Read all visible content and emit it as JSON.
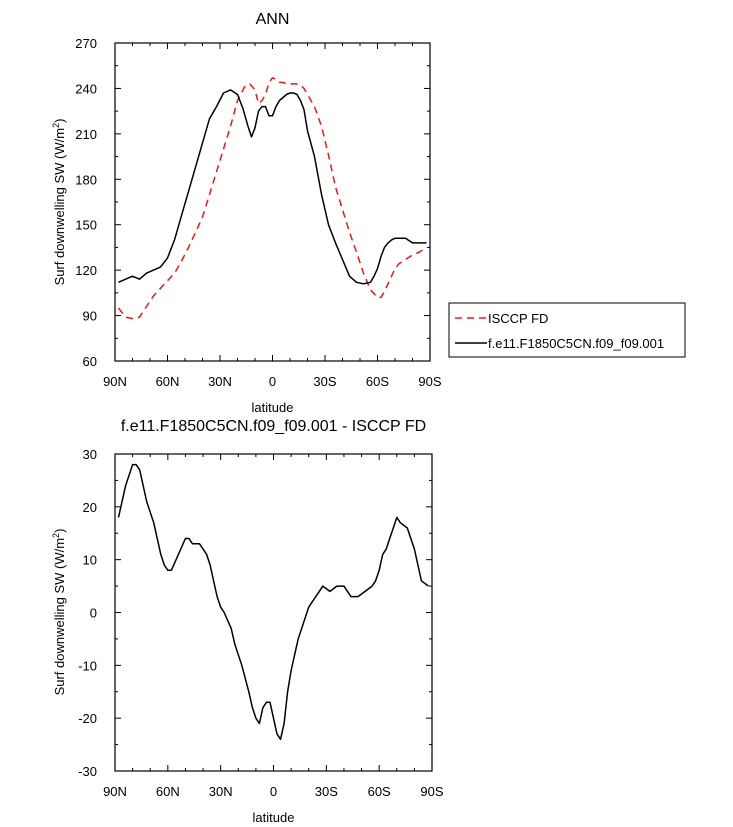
{
  "chart_data": [
    {
      "type": "line",
      "title": "ANN",
      "xlabel": "latitude",
      "ylabel": "Surf downwelling SW (W/m²)",
      "xlim": [
        -90,
        90
      ],
      "ylim": [
        60,
        270
      ],
      "xticks": [
        {
          "v": -90,
          "label": "90N"
        },
        {
          "v": -60,
          "label": "60N"
        },
        {
          "v": -30,
          "label": "30N"
        },
        {
          "v": 0,
          "label": "0"
        },
        {
          "v": 30,
          "label": "30S"
        },
        {
          "v": 60,
          "label": "60S"
        },
        {
          "v": 90,
          "label": "90S"
        }
      ],
      "yticks": [
        {
          "v": 60,
          "label": "60"
        },
        {
          "v": 90,
          "label": "90"
        },
        {
          "v": 120,
          "label": "120"
        },
        {
          "v": 150,
          "label": "150"
        },
        {
          "v": 180,
          "label": "180"
        },
        {
          "v": 210,
          "label": "210"
        },
        {
          "v": 240,
          "label": "240"
        },
        {
          "v": 270,
          "label": "270"
        }
      ],
      "grid": false,
      "legend_position": "right",
      "series": [
        {
          "name": "ISCCP FD",
          "color": "#e8191c",
          "dash": true,
          "x": [
            -88,
            -84,
            -80,
            -76,
            -72,
            -68,
            -64,
            -60,
            -56,
            -52,
            -48,
            -44,
            -40,
            -36,
            -32,
            -28,
            -24,
            -20,
            -16,
            -13,
            -10,
            -8,
            -6,
            -4,
            -2,
            0,
            2,
            4,
            6,
            8,
            10,
            12,
            14,
            16,
            18,
            20,
            24,
            28,
            32,
            36,
            40,
            44,
            48,
            52,
            56,
            60,
            62,
            64,
            66,
            68,
            70,
            72,
            76,
            80,
            84,
            88
          ],
          "y": [
            95,
            89,
            88,
            89,
            96,
            103,
            108,
            113,
            118,
            126,
            135,
            145,
            155,
            170,
            185,
            200,
            215,
            232,
            241,
            243,
            239,
            230,
            232,
            236,
            244,
            247,
            246,
            244,
            244,
            243,
            243,
            243,
            243,
            242,
            240,
            236,
            228,
            215,
            196,
            175,
            160,
            145,
            132,
            118,
            107,
            102,
            102,
            106,
            111,
            116,
            121,
            124,
            127,
            130,
            132,
            135
          ]
        },
        {
          "name": "f.e11.F1850C5CN.f09_f09.001",
          "color": "#000000",
          "dash": false,
          "x": [
            -88,
            -84,
            -80,
            -76,
            -72,
            -68,
            -64,
            -60,
            -56,
            -52,
            -48,
            -44,
            -40,
            -36,
            -32,
            -28,
            -24,
            -20,
            -17,
            -14,
            -12,
            -10,
            -8,
            -6,
            -4,
            -2,
            0,
            2,
            4,
            6,
            8,
            10,
            12,
            14,
            16,
            18,
            20,
            24,
            28,
            32,
            36,
            40,
            44,
            48,
            52,
            56,
            58,
            60,
            62,
            64,
            66,
            68,
            70,
            72,
            76,
            80,
            84,
            88
          ],
          "y": [
            112,
            114,
            116,
            114,
            118,
            120,
            122,
            128,
            140,
            156,
            172,
            188,
            204,
            220,
            228,
            237,
            239,
            236,
            227,
            215,
            208,
            214,
            225,
            228,
            228,
            222,
            222,
            228,
            232,
            234,
            236,
            237,
            237,
            236,
            232,
            226,
            212,
            195,
            170,
            150,
            138,
            127,
            116,
            112,
            111,
            112,
            116,
            121,
            129,
            135,
            138,
            140,
            141,
            141,
            141,
            138,
            138,
            138
          ]
        }
      ]
    },
    {
      "type": "line",
      "title": "f.e11.F1850C5CN.f09_f09.001 - ISCCP FD",
      "xlabel": "latitude",
      "ylabel": "Surf downwelling SW (W/m²)",
      "xlim": [
        -90,
        90
      ],
      "ylim": [
        -30,
        30
      ],
      "xticks": [
        {
          "v": -90,
          "label": "90N"
        },
        {
          "v": -60,
          "label": "60N"
        },
        {
          "v": -30,
          "label": "30N"
        },
        {
          "v": 0,
          "label": "0"
        },
        {
          "v": 30,
          "label": "30S"
        },
        {
          "v": 60,
          "label": "60S"
        },
        {
          "v": 90,
          "label": "90S"
        }
      ],
      "yticks": [
        {
          "v": -30,
          "label": "-30"
        },
        {
          "v": -20,
          "label": "-20"
        },
        {
          "v": -10,
          "label": "-10"
        },
        {
          "v": 0,
          "label": "0"
        },
        {
          "v": 10,
          "label": "10"
        },
        {
          "v": 20,
          "label": "20"
        },
        {
          "v": 30,
          "label": "30"
        }
      ],
      "grid": false,
      "series": [
        {
          "color": "#000000",
          "dash": false,
          "x": [
            -88,
            -84,
            -80,
            -78,
            -76,
            -72,
            -68,
            -64,
            -62,
            -60,
            -58,
            -54,
            -50,
            -48,
            -46,
            -44,
            -42,
            -40,
            -38,
            -36,
            -34,
            -32,
            -30,
            -28,
            -24,
            -22,
            -18,
            -14,
            -12,
            -10,
            -8,
            -6,
            -4,
            -2,
            0,
            2,
            4,
            6,
            8,
            10,
            12,
            14,
            16,
            18,
            20,
            22,
            24,
            26,
            28,
            32,
            36,
            40,
            44,
            48,
            52,
            56,
            58,
            60,
            62,
            64,
            66,
            68,
            70,
            72,
            76,
            80,
            84,
            88
          ],
          "y": [
            18,
            24,
            28,
            28,
            27,
            21,
            17,
            11,
            9,
            8,
            8,
            11,
            14,
            14,
            13,
            13,
            13,
            12,
            11,
            9,
            6,
            3,
            1,
            0,
            -3,
            -6,
            -10,
            -15,
            -18,
            -20,
            -21,
            -18,
            -17,
            -17,
            -20,
            -23,
            -24,
            -21,
            -15,
            -11,
            -8,
            -5,
            -3,
            -1,
            1,
            2,
            3,
            4,
            5,
            4,
            5,
            5,
            3,
            3,
            4,
            5,
            6,
            8,
            11,
            12,
            14,
            16,
            18,
            17,
            16,
            12,
            6,
            5
          ]
        }
      ]
    }
  ],
  "legend": [
    {
      "label": "ISCCP FD",
      "color": "#e8191c",
      "dash": true
    },
    {
      "label": "f.e11.F1850C5CN.f09_f09.001",
      "color": "#000000",
      "dash": false
    }
  ]
}
